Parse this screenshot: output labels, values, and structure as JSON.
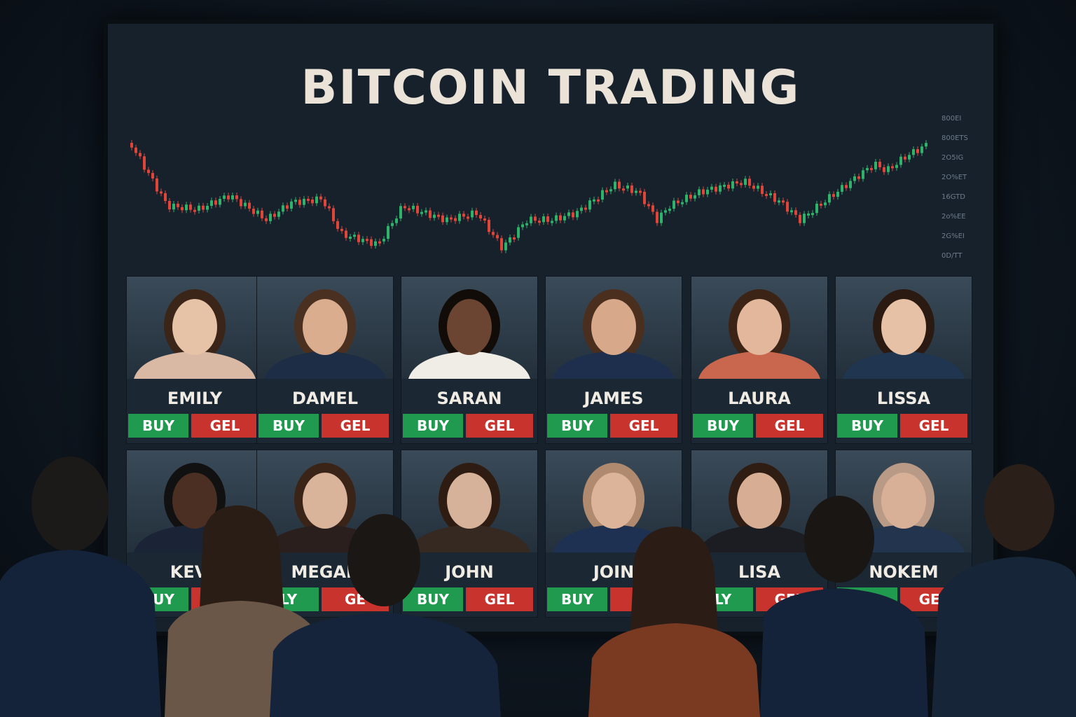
{
  "screen": {
    "title": "BITCOIN TRADING",
    "axis_labels": [
      "800EI",
      "800ETS",
      "2O5IG",
      "2O%ET",
      "16GTD",
      "2o%EE",
      "2G%EI",
      "0D/TT"
    ]
  },
  "colors": {
    "up_candle": "#2fb36b",
    "down_candle": "#e0453a",
    "buy_button": "#1f9a4f",
    "sell_button": "#c9332d"
  },
  "traders_row1": [
    {
      "name": "EMILY",
      "buy": "BUY",
      "sell": "GEL"
    },
    {
      "name": "DAMEL",
      "buy": "BUY",
      "sell": "GEL"
    },
    {
      "name": "SARAN",
      "buy": "BUY",
      "sell": "GEL"
    },
    {
      "name": "JAMES",
      "buy": "BUY",
      "sell": "GEL"
    },
    {
      "name": "LAURA",
      "buy": "BUY",
      "sell": "GEL"
    },
    {
      "name": "LISSA",
      "buy": "BUY",
      "sell": "GEL"
    }
  ],
  "traders_row2": [
    {
      "name": "KEVA",
      "buy": "BUY",
      "sell": "G"
    },
    {
      "name": "MEGAR",
      "buy": "LY",
      "sell": "GE"
    },
    {
      "name": "JOHN",
      "buy": "BUY",
      "sell": "GEL"
    },
    {
      "name": "JOIN",
      "buy": "BUY",
      "sell": "GG"
    },
    {
      "name": "LISA",
      "buy": "LY",
      "sell": "GEL"
    },
    {
      "name": "NOKEM",
      "buy": "LY",
      "sell": "GEL"
    }
  ]
}
